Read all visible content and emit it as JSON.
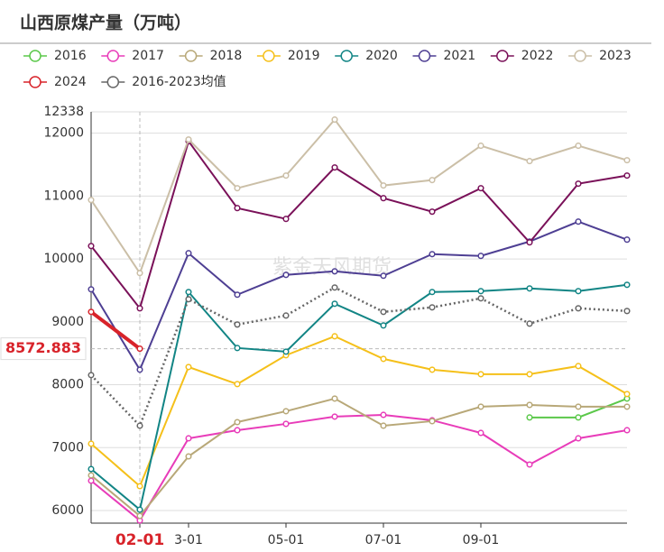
{
  "chart_data": {
    "type": "line",
    "title": "山西原煤产量（万吨）",
    "watermark": "紫金天风期货",
    "categories": [
      null,
      "02-01",
      "3-01",
      null,
      "05-01",
      null,
      "07-01",
      null,
      "09-01",
      null,
      null,
      null
    ],
    "ylim": [
      5800,
      12338
    ],
    "yticks": [
      6000,
      7000,
      8000,
      9000,
      10000,
      11000,
      12000,
      12338
    ],
    "grid": true,
    "series": [
      {
        "name": "2016",
        "color": "#5bc84a",
        "values": [
          null,
          null,
          null,
          null,
          null,
          null,
          null,
          null,
          null,
          7480,
          7480,
          7780
        ]
      },
      {
        "name": "2017",
        "color": "#e83cb9",
        "values": [
          6474,
          5842,
          7148,
          7277,
          7378,
          7493,
          7521,
          7435,
          7234,
          6732,
          7148,
          7277
        ]
      },
      {
        "name": "2018",
        "color": "#b8a878",
        "values": [
          6560,
          5914,
          6861,
          7406,
          7579,
          7780,
          7349,
          7421,
          7651,
          7679,
          7651,
          7651
        ]
      },
      {
        "name": "2019",
        "color": "#f5c01a",
        "values": [
          7062,
          6388,
          8282,
          8010,
          8469,
          8770,
          8411,
          8239,
          8167,
          8167,
          8297,
          7852
        ]
      },
      {
        "name": "2020",
        "color": "#128585",
        "values": [
          6660,
          6014,
          9474,
          8584,
          8526,
          9287,
          8942,
          9474,
          9488,
          9531,
          9488,
          9588
        ]
      },
      {
        "name": "2021",
        "color": "#4e3f93",
        "values": [
          9517,
          8239,
          10091,
          9431,
          9746,
          9803,
          9732,
          10076,
          10048,
          10277,
          10593,
          10306
        ]
      },
      {
        "name": "2022",
        "color": "#7a1159",
        "values": [
          10205,
          9215,
          11871,
          10808,
          10636,
          11454,
          10966,
          10751,
          11124,
          10263,
          11196,
          11325
        ]
      },
      {
        "name": "2023",
        "color": "#cbbfa7",
        "values": [
          10937,
          9775,
          11899,
          11124,
          11325,
          12215,
          11167,
          11253,
          11799,
          11555,
          11799,
          11569
        ]
      },
      {
        "name": "2024",
        "color": "#d8232a",
        "values": [
          9158,
          8572.883,
          null,
          null,
          null,
          null,
          null,
          null,
          null,
          null,
          null,
          null
        ]
      },
      {
        "name": "2016-2023均值",
        "color": "#666666",
        "dashed": true,
        "values": [
          8153,
          7349,
          9359,
          8957,
          9100,
          9545,
          9158,
          9230,
          9373,
          8971,
          9215,
          9172
        ]
      }
    ]
  }
}
